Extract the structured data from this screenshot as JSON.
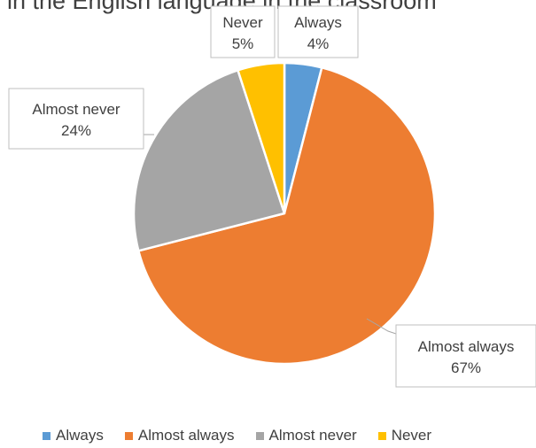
{
  "chart_data": {
    "type": "pie",
    "title": "in the English language in the classroom",
    "categories": [
      "Always",
      "Almost always",
      "Almost never",
      "Never"
    ],
    "values": [
      4,
      67,
      24,
      5
    ],
    "value_labels": [
      "4%",
      "67%",
      "24%",
      "5%"
    ],
    "colors": [
      "#5B9BD5",
      "#ED7D31",
      "#A5A5A5",
      "#FFC000"
    ],
    "legend_position": "bottom",
    "start_angle": "top, clockwise"
  }
}
